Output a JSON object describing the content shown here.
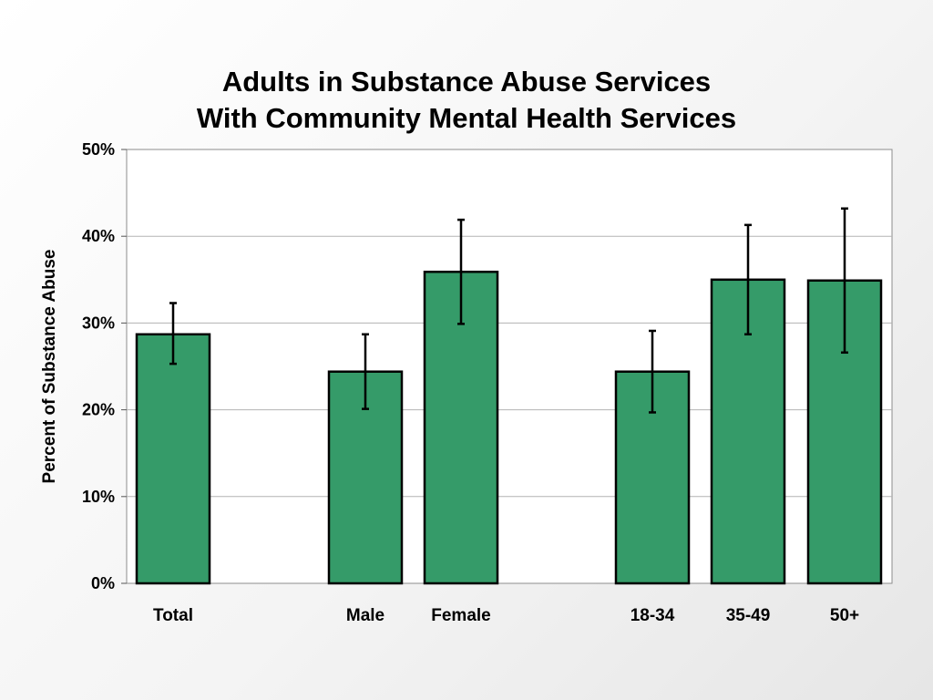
{
  "chart_data": {
    "type": "bar",
    "title_lines": [
      "Adults in Substance Abuse Services",
      "With Community Mental Health Services"
    ],
    "ylabel": "Percent of Substance Abuse",
    "xlabel": "",
    "ylim": [
      0,
      50
    ],
    "y_ticks": [
      0,
      10,
      20,
      30,
      40,
      50
    ],
    "y_tick_labels": [
      "0%",
      "10%",
      "20%",
      "30%",
      "40%",
      "50%"
    ],
    "grid": true,
    "legend": "none",
    "categories": [
      "Total",
      "Male",
      "Female",
      "18-34",
      "35-49",
      "50+"
    ],
    "values": [
      28.7,
      24.4,
      35.9,
      24.4,
      35.0,
      34.9
    ],
    "error_low": [
      25.3,
      20.1,
      29.9,
      19.7,
      28.7,
      26.6
    ],
    "error_high": [
      32.3,
      28.7,
      41.9,
      29.1,
      41.3,
      43.2
    ],
    "bar_color": "#359b69"
  }
}
